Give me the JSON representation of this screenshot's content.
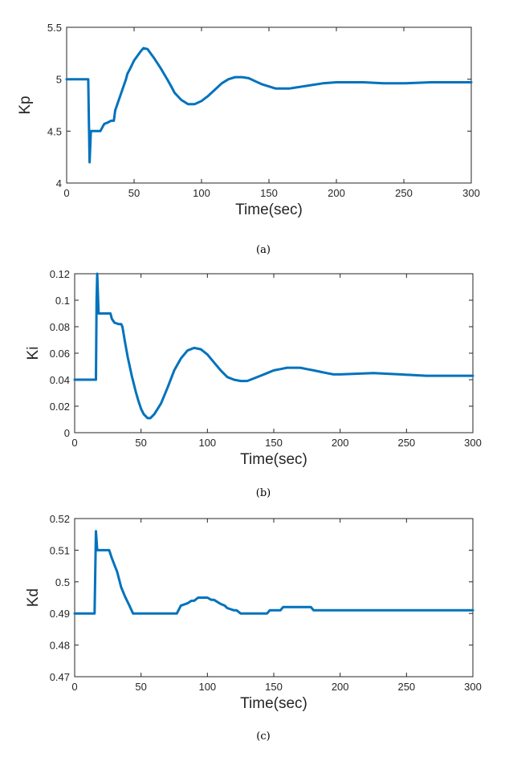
{
  "chart_data": [
    {
      "type": "line",
      "caption": "(a)",
      "xlabel": "Time(sec)",
      "ylabel": "Kp",
      "xlim": [
        0,
        300
      ],
      "ylim": [
        4,
        5.5
      ],
      "xticks": [
        0,
        50,
        100,
        150,
        200,
        250,
        300
      ],
      "yticks": [
        "4",
        "4.5",
        "5",
        "5.5"
      ],
      "ytick_values": [
        4,
        4.5,
        5,
        5.5
      ],
      "color": "#0072BD",
      "series": [
        {
          "x": [
            0,
            16,
            16.5,
            17,
            18,
            20,
            25,
            27,
            28,
            30,
            33,
            35,
            36,
            40,
            44,
            45,
            47,
            50,
            55,
            57,
            60,
            65,
            70,
            75,
            78,
            80,
            85,
            90,
            95,
            100,
            105,
            110,
            115,
            120,
            125,
            130,
            135,
            140,
            145,
            150,
            155,
            160,
            165,
            170,
            175,
            180,
            190,
            200,
            210,
            220,
            235,
            250,
            270,
            300
          ],
          "y": [
            5.0,
            5.0,
            4.6,
            4.2,
            4.5,
            4.5,
            4.5,
            4.55,
            4.57,
            4.58,
            4.6,
            4.6,
            4.7,
            4.85,
            5.0,
            5.05,
            5.1,
            5.18,
            5.27,
            5.3,
            5.29,
            5.2,
            5.1,
            4.99,
            4.92,
            4.87,
            4.8,
            4.76,
            4.76,
            4.79,
            4.84,
            4.9,
            4.96,
            5.0,
            5.02,
            5.02,
            5.01,
            4.98,
            4.95,
            4.93,
            4.91,
            4.91,
            4.91,
            4.92,
            4.93,
            4.94,
            4.96,
            4.97,
            4.97,
            4.97,
            4.96,
            4.96,
            4.97,
            4.97
          ]
        }
      ]
    },
    {
      "type": "line",
      "caption": "(b)",
      "xlabel": "Time(sec)",
      "ylabel": "Ki",
      "xlim": [
        0,
        300
      ],
      "ylim": [
        0,
        0.12
      ],
      "xticks": [
        0,
        50,
        100,
        150,
        200,
        250,
        300
      ],
      "yticks": [
        "0",
        "0.02",
        "0.04",
        "0.06",
        "0.08",
        "0.1",
        "0.12"
      ],
      "ytick_values": [
        0,
        0.02,
        0.04,
        0.06,
        0.08,
        0.1,
        0.12
      ],
      "color": "#0072BD",
      "series": [
        {
          "x": [
            0,
            16,
            16.5,
            17,
            18,
            25,
            27,
            28,
            30,
            33,
            35,
            36,
            38,
            40,
            43,
            46,
            48,
            50,
            52,
            55,
            57,
            60,
            65,
            70,
            75,
            80,
            85,
            90,
            95,
            100,
            105,
            110,
            115,
            120,
            125,
            130,
            135,
            140,
            145,
            150,
            155,
            160,
            165,
            170,
            175,
            180,
            185,
            190,
            195,
            200,
            225,
            245,
            265,
            300
          ],
          "y": [
            0.04,
            0.04,
            0.1,
            0.12,
            0.09,
            0.09,
            0.09,
            0.086,
            0.083,
            0.082,
            0.082,
            0.08,
            0.068,
            0.057,
            0.043,
            0.031,
            0.024,
            0.018,
            0.014,
            0.011,
            0.011,
            0.014,
            0.022,
            0.034,
            0.047,
            0.056,
            0.062,
            0.064,
            0.063,
            0.059,
            0.053,
            0.047,
            0.042,
            0.04,
            0.039,
            0.039,
            0.041,
            0.043,
            0.045,
            0.047,
            0.048,
            0.049,
            0.049,
            0.049,
            0.048,
            0.047,
            0.046,
            0.045,
            0.044,
            0.044,
            0.045,
            0.044,
            0.043,
            0.043
          ]
        }
      ]
    },
    {
      "type": "line",
      "caption": "(c)",
      "xlabel": "Time(sec)",
      "ylabel": "Kd",
      "xlim": [
        0,
        300
      ],
      "ylim": [
        0.47,
        0.52
      ],
      "xticks": [
        0,
        50,
        100,
        150,
        200,
        250,
        300
      ],
      "yticks": [
        "0.47",
        "0.48",
        "0.49",
        "0.5",
        "0.51",
        "0.52"
      ],
      "ytick_values": [
        0.47,
        0.48,
        0.49,
        0.5,
        0.51,
        0.52
      ],
      "color": "#0072BD",
      "series": [
        {
          "x": [
            0,
            15,
            16,
            17,
            18,
            26,
            28,
            30,
            32,
            35,
            38,
            41,
            44,
            50,
            60,
            70,
            77,
            80,
            85,
            88,
            90,
            93,
            95,
            100,
            103,
            105,
            110,
            113,
            115,
            120,
            122,
            125,
            130,
            140,
            145,
            147,
            155,
            157,
            170,
            178,
            180,
            200,
            250,
            300
          ],
          "y": [
            0.49,
            0.49,
            0.516,
            0.51,
            0.51,
            0.51,
            0.5075,
            0.5053,
            0.5032,
            0.4983,
            0.4953,
            0.4927,
            0.49,
            0.49,
            0.49,
            0.49,
            0.49,
            0.4925,
            0.4932,
            0.494,
            0.494,
            0.495,
            0.495,
            0.495,
            0.4943,
            0.4943,
            0.493,
            0.4925,
            0.4917,
            0.491,
            0.491,
            0.49,
            0.49,
            0.49,
            0.49,
            0.491,
            0.491,
            0.492,
            0.492,
            0.492,
            0.491,
            0.491,
            0.491,
            0.491
          ]
        }
      ]
    }
  ]
}
